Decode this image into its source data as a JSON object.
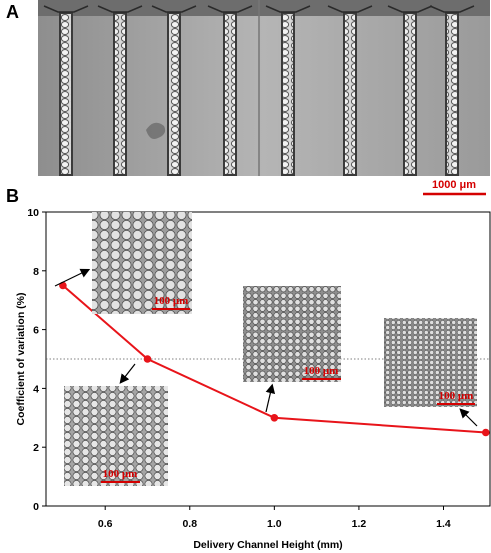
{
  "panel_a": {
    "label": "A",
    "scale_bar": "1000 μm",
    "channels": 8
  },
  "panel_b": {
    "label": "B"
  },
  "chart_data": {
    "type": "line",
    "title": "",
    "xlabel": "Delivery Channel Height (mm)",
    "ylabel": "Coefficient of variation (%)",
    "xlim": [
      0.46,
      1.51
    ],
    "ylim": [
      0,
      10
    ],
    "xticks": [
      0.6,
      0.8,
      1.0,
      1.2,
      1.4
    ],
    "yticks": [
      0,
      2,
      4,
      6,
      8,
      10
    ],
    "reference_line_y": 5,
    "grid": false,
    "series": [
      {
        "x": [
          0.5,
          0.7,
          1.0,
          1.5
        ],
        "y": [
          7.5,
          5.0,
          3.0,
          2.5
        ],
        "color": "#e8141a"
      }
    ],
    "insets": [
      {
        "scale_bar": "100 μm",
        "point_index": 0
      },
      {
        "scale_bar": "100 μm",
        "point_index": 1
      },
      {
        "scale_bar": "100 μm",
        "point_index": 2
      },
      {
        "scale_bar": "100 μm",
        "point_index": 3
      }
    ]
  }
}
